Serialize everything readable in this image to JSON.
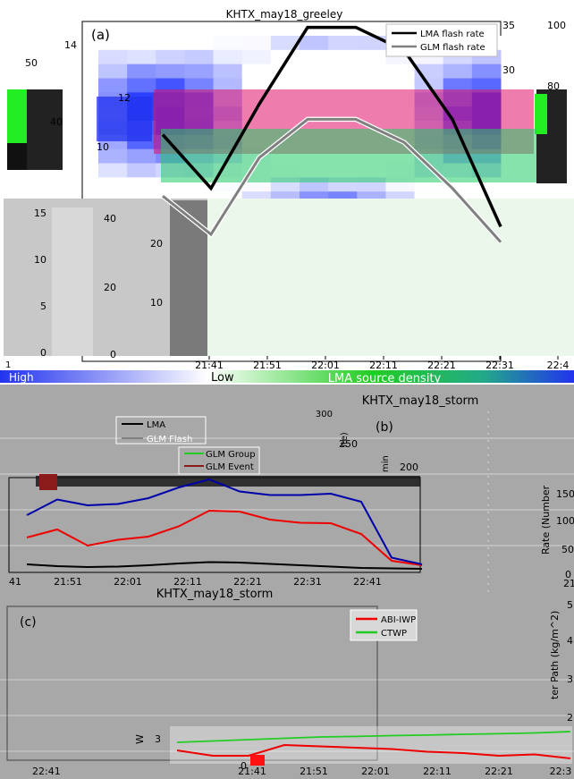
{
  "colors": {
    "lma_line": "#000000",
    "glm_line": "#808080",
    "glm_group_line": "#0000aa",
    "glm_event_line": "#ee0000",
    "abiwp_line": "#ee0000",
    "ctwp_line": "#22cc22",
    "panel_bg": "#a8a8a8",
    "colorbar_high": "#2233ee",
    "colorbar_low": "#ffffff",
    "colorbar_mid": "#22cc22"
  },
  "chart_data": [
    {
      "type": "heatmap",
      "title": "KHTX_may18_greeley",
      "panel_label": "(a)",
      "xlabel": "",
      "x_ticks": [
        "21:41",
        "21:51",
        "22:01",
        "22:11",
        "22:21",
        "22:31",
        "22:4"
      ],
      "x_tick_left_fragment": "1",
      "y_left_ticks": [
        "14",
        "12",
        "10"
      ],
      "y_far_left_ticks": [
        "50",
        "40"
      ],
      "y_lower_ticks": [
        "20",
        "10"
      ],
      "y_right_ticks": [
        "35",
        "30"
      ],
      "y_far_right_ticks": [
        "100",
        "80"
      ],
      "stacked_left_ticks": [
        "15",
        "10",
        "5",
        "0"
      ],
      "stacked_left2_ticks": [
        "40",
        "20",
        "0"
      ],
      "colorbar": {
        "low_label": "Low",
        "high_label": "High",
        "label": "LMA source density"
      },
      "series": [
        {
          "name": "LMA flash rate",
          "values": [
            20,
            13,
            24,
            34,
            34,
            31,
            22,
            8
          ]
        },
        {
          "name": "GLM flash rate",
          "values": [
            12,
            7,
            17,
            22,
            22,
            19,
            13,
            6
          ]
        }
      ],
      "x": [
        "21:41",
        "21:46",
        "21:51",
        "21:56",
        "22:01",
        "22:06",
        "22:11",
        "22:16"
      ]
    },
    {
      "type": "line",
      "title": "KHTX_may18_storm",
      "panel_label": "(b)",
      "xlabel": "",
      "ylabel": "Rate (Number",
      "ylabel_fragment_top": "ite)",
      "ylabel_fragment_min": "min",
      "x_ticks": [
        "21:51",
        "22:01",
        "22:11",
        "22:21",
        "22:31",
        "22:41"
      ],
      "x_tick_left_fragment": "41",
      "x_tick_right_fragment": "21",
      "y_ticks_top": [
        "300",
        "250",
        "200"
      ],
      "y_ticks_right": [
        "150",
        "100",
        "50",
        "0"
      ],
      "legend": [
        "LMA",
        "GLM Flash",
        "GLM Group",
        "GLM Event"
      ],
      "x": [
        "21:41",
        "21:46",
        "21:51",
        "21:56",
        "22:01",
        "22:06",
        "22:11",
        "22:16",
        "22:21",
        "22:26",
        "22:31",
        "22:36",
        "22:41",
        "22:46"
      ],
      "series": [
        {
          "name": "LMA",
          "values": [
            10,
            6,
            4,
            5,
            8,
            12,
            15,
            14,
            11,
            8,
            5,
            2,
            1,
            0
          ]
        },
        {
          "name": "GLM Flash",
          "values": [
            0,
            0,
            0,
            0,
            0,
            0,
            0,
            0,
            0,
            0,
            0,
            0,
            0,
            0
          ]
        },
        {
          "name": "GLM Group",
          "values": [
            120,
            155,
            142,
            145,
            158,
            182,
            200,
            173,
            165,
            165,
            168,
            150,
            25,
            10
          ]
        },
        {
          "name": "GLM Event",
          "values": [
            70,
            88,
            52,
            65,
            72,
            95,
            130,
            128,
            110,
            103,
            102,
            78,
            18,
            8
          ]
        }
      ]
    },
    {
      "type": "line",
      "title": "KHTX_may18_storm",
      "panel_label": "(c)",
      "xlabel": "",
      "ylabel": "ter Path (kg/m^2)",
      "ylabel_left_fragment": "W",
      "x_ticks": [
        "21:41",
        "21:51",
        "22:01",
        "22:11",
        "22:21",
        "22:3"
      ],
      "x_tick_left": "22:41",
      "y_ticks_right": [
        "5",
        "4",
        "3",
        "2"
      ],
      "y_tick_zero": "0",
      "y_tick_3": "3",
      "legend": [
        "ABI-IWP",
        "CTWP"
      ],
      "x": [
        "21:41",
        "21:46",
        "21:51",
        "21:56",
        "22:01",
        "22:06",
        "22:11",
        "22:16",
        "22:21",
        "22:26",
        "22:31",
        "22:36"
      ],
      "series": [
        {
          "name": "ABI-IWP",
          "values": [
            0.3,
            0.1,
            0.1,
            0.5,
            0.45,
            0.4,
            0.35,
            0.25,
            0.2,
            0.1,
            0.15,
            0.0
          ]
        },
        {
          "name": "CTWP",
          "values": [
            0.6,
            0.65,
            0.7,
            0.75,
            0.8,
            0.82,
            0.85,
            0.87,
            0.9,
            0.92,
            0.95,
            1.0
          ]
        }
      ]
    }
  ]
}
